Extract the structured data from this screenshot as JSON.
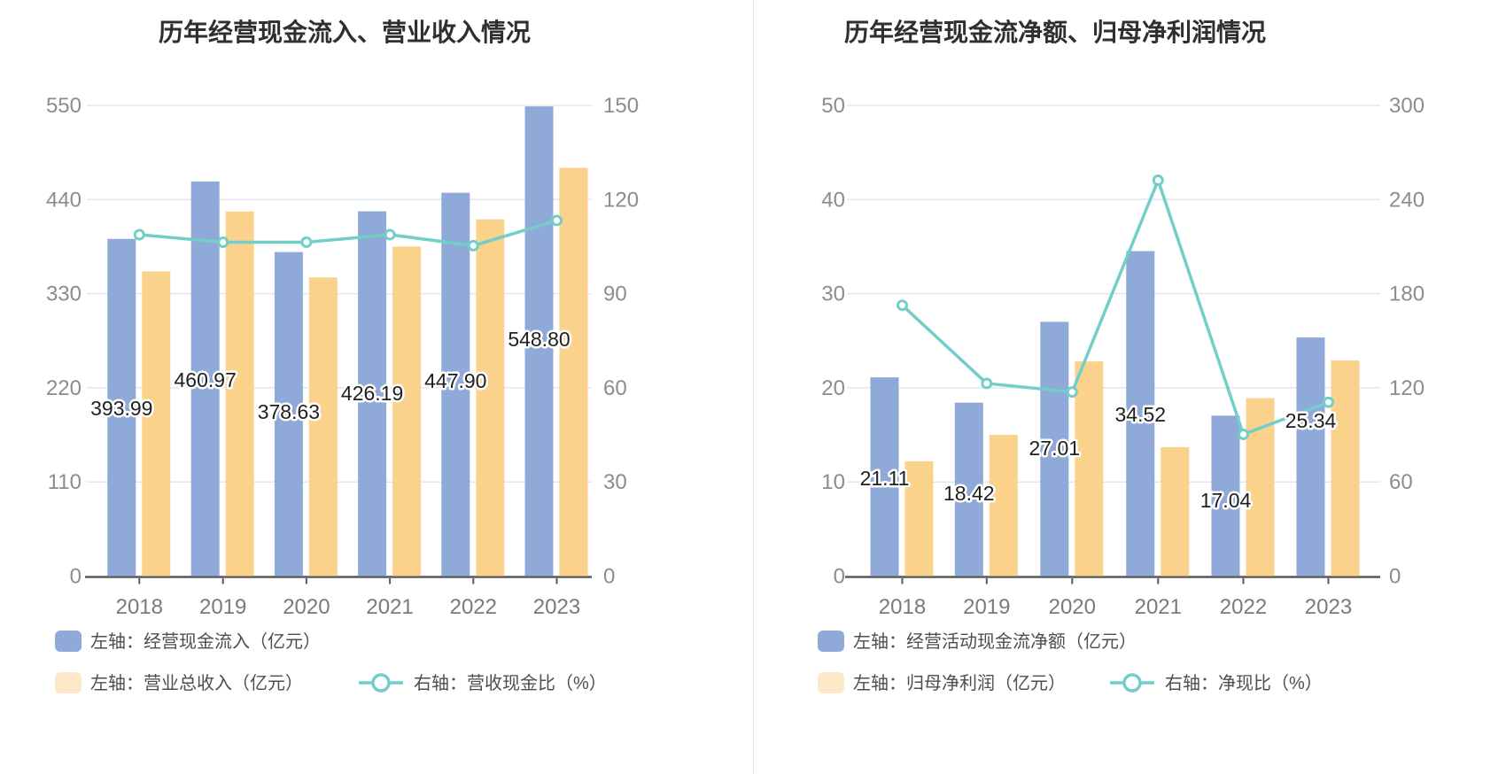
{
  "page_title": "",
  "colors": {
    "bar_blue": "#8FA9D8",
    "bar_yellow": "#FBD28B",
    "legend_yellow_swatch": "#FDE9C8",
    "line_teal": "#72CEC8",
    "gridline": "#E2E6F1",
    "axis_line": "#595959",
    "tick_label": "#8C8C8C",
    "title_text": "#2F2F2F",
    "background": "#FFFFFF"
  },
  "chart_data": [
    {
      "type": "bar+line",
      "title": "历年经营现金流入、营业收入情况",
      "categories": [
        "2018",
        "2019",
        "2020",
        "2021",
        "2022",
        "2023"
      ],
      "left_axis": {
        "min": 0,
        "max": 550,
        "ticks": [
          0,
          110,
          220,
          330,
          440,
          550
        ]
      },
      "right_axis": {
        "min": 0,
        "max": 150,
        "ticks": [
          0,
          30,
          60,
          90,
          120,
          150
        ]
      },
      "grid": true,
      "legend_position": "bottom",
      "series": [
        {
          "name": "左轴：经营现金流入（亿元）",
          "type": "bar",
          "axis": "left",
          "values": [
            393.99,
            460.97,
            378.63,
            426.19,
            447.9,
            548.8
          ],
          "labels": [
            "393.99",
            "460.97",
            "378.63",
            "426.19",
            "447.90",
            "548.80"
          ]
        },
        {
          "name": "左轴：营业总收入（亿元）",
          "type": "bar",
          "axis": "left",
          "values": [
            356,
            426,
            349,
            385,
            417,
            477
          ],
          "estimated": true
        },
        {
          "name": "右轴：营收现金比（%）",
          "type": "line",
          "axis": "right",
          "values": [
            108.8,
            106.4,
            106.4,
            108.8,
            105.3,
            113.3
          ],
          "estimated": true
        }
      ],
      "label_y_centers": [
        461,
        429,
        465,
        444,
        430,
        383
      ]
    },
    {
      "type": "bar+line",
      "title": "历年经营现金流净额、归母净利润情况",
      "categories": [
        "2018",
        "2019",
        "2020",
        "2021",
        "2022",
        "2023"
      ],
      "left_axis": {
        "min": 0,
        "max": 50,
        "ticks": [
          0,
          10,
          20,
          30,
          40,
          50
        ]
      },
      "right_axis": {
        "min": 0,
        "max": 300,
        "ticks": [
          0,
          60,
          120,
          180,
          240,
          300
        ]
      },
      "grid": true,
      "legend_position": "bottom",
      "series": [
        {
          "name": "左轴：经营活动现金流净额（亿元）",
          "type": "bar",
          "axis": "left",
          "values": [
            21.11,
            18.42,
            27.01,
            34.52,
            17.04,
            25.34
          ],
          "labels": [
            "21.11",
            "18.42",
            "27.01",
            "34.52",
            "17.04",
            "25.34"
          ]
        },
        {
          "name": "左轴：归母净利润（亿元）",
          "type": "bar",
          "axis": "left",
          "values": [
            12.2,
            15.0,
            22.8,
            13.7,
            18.9,
            22.9
          ],
          "estimated": true
        },
        {
          "name": "右轴：净现比（%）",
          "type": "line",
          "axis": "right",
          "values": [
            172.6,
            122.8,
            117.3,
            252.3,
            90.3,
            110.8
          ],
          "estimated": true
        }
      ],
      "label_y_centers": [
        540,
        557,
        506,
        468,
        565,
        475
      ]
    }
  ]
}
